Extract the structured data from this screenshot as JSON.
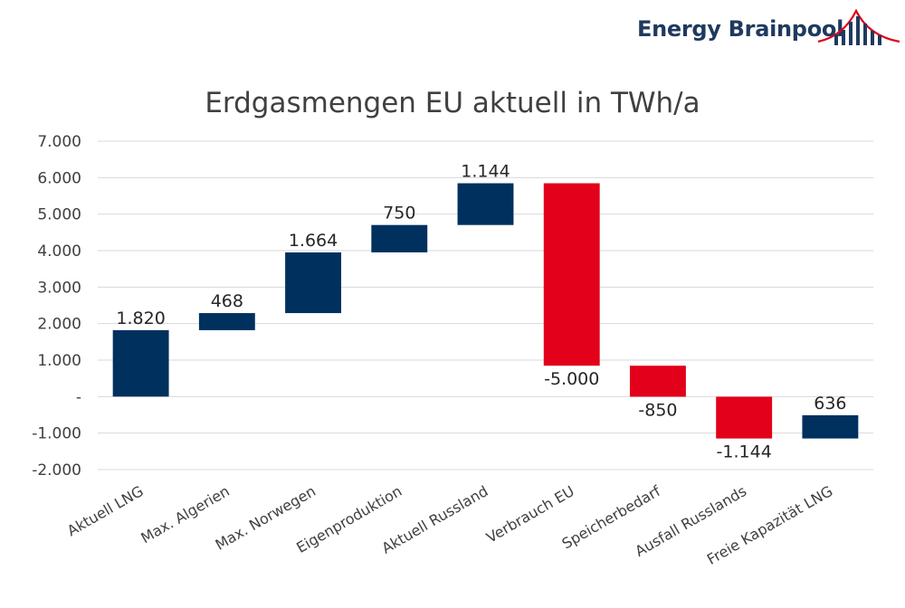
{
  "brand": {
    "name": "Energy Brainpool",
    "logo_icon": "bridge-bars-logo-icon",
    "text_color": "#1f3a5f",
    "arc_color": "#e2001a"
  },
  "chart_data": {
    "type": "waterfall",
    "title": "Erdgasmengen EU aktuell in TWh/a",
    "xlabel": "",
    "ylabel": "",
    "ylim": [
      -2000,
      7000
    ],
    "y_tick_values": [
      7000,
      6000,
      5000,
      4000,
      3000,
      2000,
      1000,
      0,
      -1000,
      -2000
    ],
    "y_tick_labels": [
      "7.000",
      "6.000",
      "5.000",
      "4.000",
      "3.000",
      "2.000",
      "1.000",
      "-",
      "-1.000",
      "-2.000"
    ],
    "grid": true,
    "categories": [
      "Aktuell LNG",
      "Max. Algerien",
      "Max. Norwegen",
      "Eigenproduktion",
      "Aktuell Russland",
      "Verbrauch EU",
      "Speicherbedarf",
      "Ausfall Russlands",
      "Freie Kapazität LNG"
    ],
    "values": [
      1820,
      468,
      1664,
      750,
      1144,
      -5000,
      -850,
      -1144,
      636
    ],
    "value_labels": [
      "1.820",
      "468",
      "1.664",
      "750",
      "1.144",
      "-5.000",
      "-850",
      "-1.144",
      "636"
    ],
    "colors": [
      "#00305e",
      "#00305e",
      "#00305e",
      "#00305e",
      "#00305e",
      "#e2001a",
      "#e2001a",
      "#e2001a",
      "#00305e"
    ],
    "grid_color": "#d9d9d9"
  }
}
